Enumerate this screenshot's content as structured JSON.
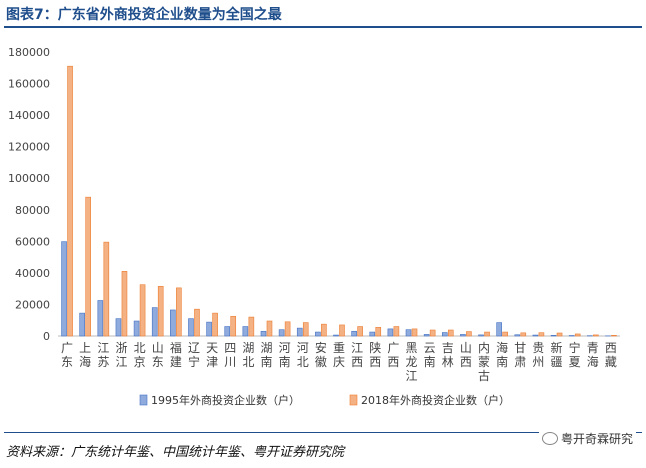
{
  "title": "图表7：广东省外商投资企业数量为全国之最",
  "source": "资料来源：广东统计年鉴、中国统计年鉴、粤开证券研究院",
  "brand": "粤开奇霖研究",
  "chart_data": {
    "type": "bar",
    "categories": [
      "广东",
      "上海",
      "江苏",
      "浙江",
      "北京",
      "山东",
      "福建",
      "辽宁",
      "天津",
      "四川",
      "湖北",
      "湖南",
      "河南",
      "河北",
      "安徽",
      "重庆",
      "江西",
      "陕西",
      "广西",
      "黑龙江",
      "云南",
      "吉林",
      "山西",
      "内蒙古",
      "海南",
      "甘肃",
      "贵州",
      "新疆",
      "宁夏",
      "青海",
      "西藏"
    ],
    "series": [
      {
        "name": "1995年外商投资企业数（户）",
        "color": "#8faadc",
        "values": [
          59800,
          14500,
          22500,
          11000,
          9500,
          18000,
          16500,
          11000,
          8800,
          6000,
          6000,
          3000,
          4000,
          5000,
          2500,
          600,
          3000,
          2500,
          4500,
          4000,
          1000,
          2200,
          1000,
          700,
          8500,
          800,
          600,
          400,
          300,
          200,
          100
        ]
      },
      {
        "name": "2018年外商投资企业数（户）",
        "color": "#f4b183",
        "values": [
          171000,
          88000,
          59500,
          41000,
          32500,
          31500,
          30500,
          17000,
          14500,
          12500,
          12000,
          9500,
          9000,
          8500,
          7500,
          7000,
          6000,
          5500,
          6000,
          4500,
          3800,
          3800,
          2800,
          2500,
          2500,
          2000,
          2100,
          1900,
          1300,
          700,
          400
        ]
      }
    ],
    "ylim": [
      0,
      180000
    ],
    "yticks": [
      0,
      20000,
      40000,
      60000,
      80000,
      100000,
      120000,
      140000,
      160000,
      180000
    ],
    "grid": false,
    "legend": "bottom"
  }
}
